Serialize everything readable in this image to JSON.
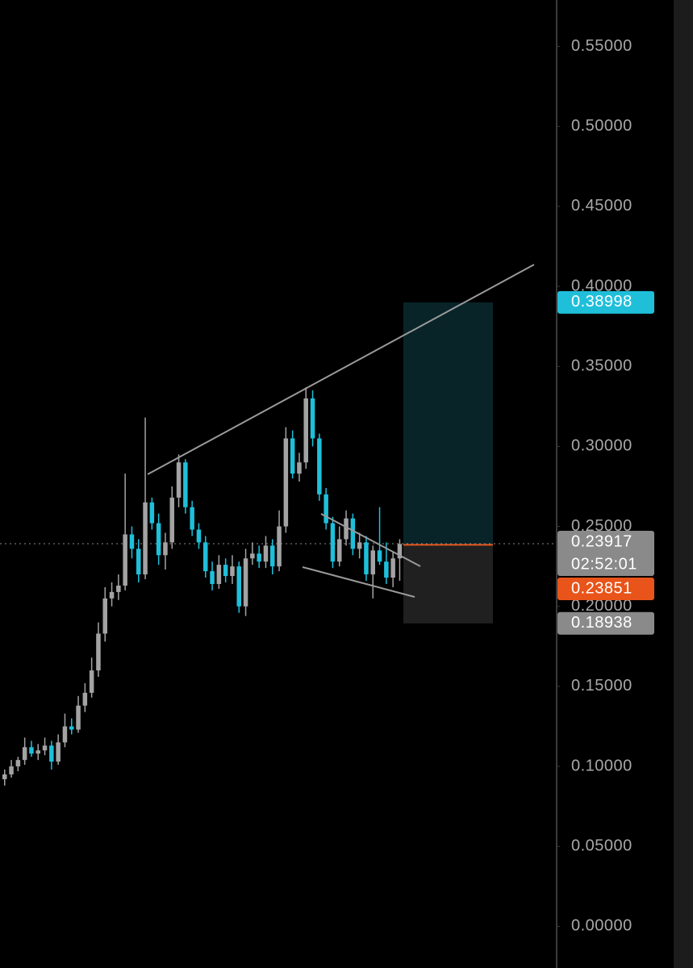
{
  "chart_data": {
    "type": "candlestick",
    "up_color": "#a3a3a3",
    "down_color": "#1fbfda",
    "open": [
      0.092,
      0.095,
      0.1,
      0.104,
      0.112,
      0.108,
      0.11,
      0.113,
      0.103,
      0.115,
      0.125,
      0.123,
      0.138,
      0.146,
      0.16,
      0.183,
      0.205,
      0.209,
      0.213,
      0.245,
      0.236,
      0.22,
      0.265,
      0.252,
      0.232,
      0.24,
      0.268,
      0.29,
      0.262,
      0.248,
      0.24,
      0.222,
      0.214,
      0.226,
      0.219,
      0.225,
      0.2,
      0.23,
      0.233,
      0.228,
      0.238,
      0.225,
      0.25,
      0.305,
      0.283,
      0.29,
      0.33,
      0.305,
      0.27,
      0.252,
      0.228,
      0.242,
      0.255,
      0.236,
      0.24,
      0.22,
      0.235,
      0.228,
      0.218,
      0.23
    ],
    "high": [
      0.098,
      0.104,
      0.106,
      0.118,
      0.116,
      0.114,
      0.118,
      0.116,
      0.12,
      0.133,
      0.13,
      0.144,
      0.152,
      0.168,
      0.19,
      0.212,
      0.215,
      0.22,
      0.283,
      0.25,
      0.242,
      0.318,
      0.268,
      0.258,
      0.246,
      0.275,
      0.295,
      0.292,
      0.266,
      0.252,
      0.244,
      0.228,
      0.232,
      0.23,
      0.232,
      0.228,
      0.236,
      0.24,
      0.238,
      0.244,
      0.242,
      0.26,
      0.312,
      0.31,
      0.296,
      0.337,
      0.335,
      0.308,
      0.274,
      0.256,
      0.25,
      0.26,
      0.258,
      0.246,
      0.244,
      0.238,
      0.262,
      0.24,
      0.234,
      0.242
    ],
    "low": [
      0.088,
      0.093,
      0.097,
      0.101,
      0.106,
      0.104,
      0.107,
      0.098,
      0.101,
      0.112,
      0.12,
      0.121,
      0.134,
      0.143,
      0.156,
      0.178,
      0.2,
      0.204,
      0.21,
      0.23,
      0.215,
      0.217,
      0.248,
      0.226,
      0.223,
      0.236,
      0.262,
      0.258,
      0.244,
      0.236,
      0.218,
      0.21,
      0.211,
      0.215,
      0.214,
      0.196,
      0.194,
      0.226,
      0.224,
      0.224,
      0.22,
      0.222,
      0.246,
      0.28,
      0.278,
      0.286,
      0.3,
      0.266,
      0.248,
      0.224,
      0.225,
      0.238,
      0.232,
      0.23,
      0.216,
      0.205,
      0.226,
      0.214,
      0.212,
      0.216
    ],
    "close": [
      0.095,
      0.1,
      0.104,
      0.112,
      0.108,
      0.11,
      0.113,
      0.103,
      0.115,
      0.125,
      0.123,
      0.138,
      0.146,
      0.16,
      0.183,
      0.205,
      0.209,
      0.213,
      0.245,
      0.236,
      0.22,
      0.265,
      0.252,
      0.232,
      0.24,
      0.268,
      0.29,
      0.262,
      0.248,
      0.24,
      0.222,
      0.214,
      0.226,
      0.219,
      0.225,
      0.2,
      0.23,
      0.233,
      0.228,
      0.238,
      0.225,
      0.25,
      0.305,
      0.283,
      0.29,
      0.33,
      0.305,
      0.27,
      0.252,
      0.228,
      0.242,
      0.255,
      0.236,
      0.24,
      0.22,
      0.235,
      0.228,
      0.218,
      0.23,
      0.239
    ],
    "ylim": [
      -0.026,
      0.579
    ],
    "yticks": [
      {
        "value": 0,
        "label": "0.00000"
      },
      {
        "value": 0.05,
        "label": "0.05000"
      },
      {
        "value": 0.1,
        "label": "0.10000"
      },
      {
        "value": 0.15,
        "label": "0.15000"
      },
      {
        "value": 0.2,
        "label": "0.20000"
      },
      {
        "value": 0.25,
        "label": "0.25000"
      },
      {
        "value": 0.3,
        "label": "0.30000"
      },
      {
        "value": 0.35,
        "label": "0.35000"
      },
      {
        "value": 0.4,
        "label": "0.40000"
      },
      {
        "value": 0.45,
        "label": "0.45000"
      },
      {
        "value": 0.5,
        "label": "0.50000"
      },
      {
        "value": 0.55,
        "label": "0.55000"
      }
    ],
    "price_labels": [
      {
        "value": 0.38998,
        "label": "0.38998",
        "color": "#1fbfda"
      },
      {
        "value": 0.23917,
        "label": "0.23917",
        "countdown": "02:52:01",
        "color": "#8a8a8a"
      },
      {
        "value": 0.23851,
        "label": "0.23851",
        "color": "#e8541a"
      },
      {
        "value": 0.18938,
        "label": "0.18938",
        "color": "#8a8a8a"
      }
    ]
  }
}
